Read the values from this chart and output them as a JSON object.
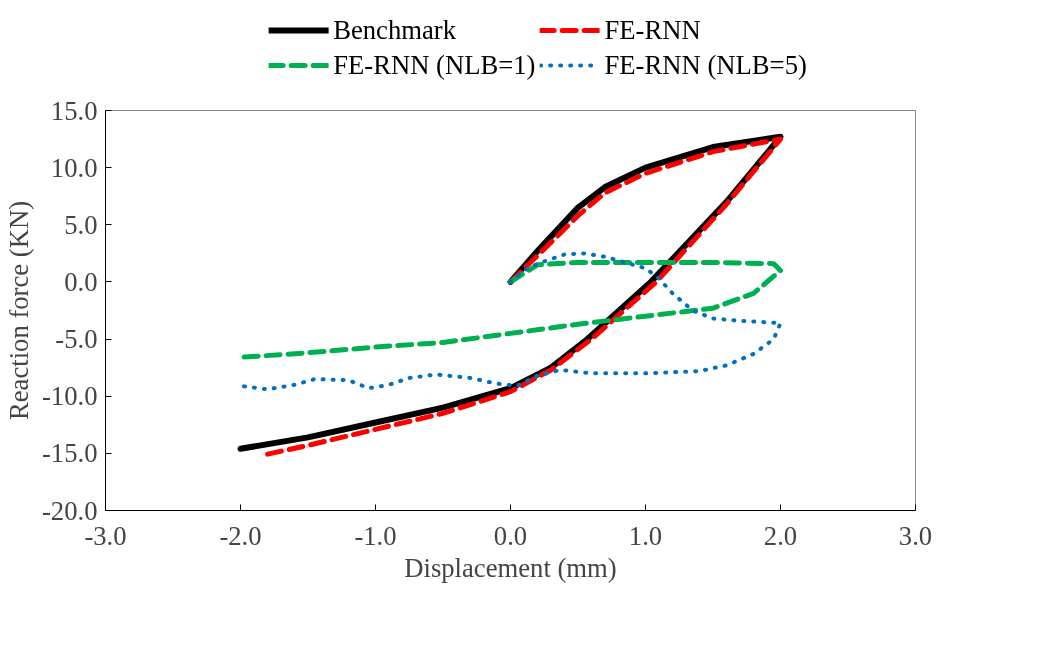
{
  "chart_data": {
    "type": "line",
    "xlabel": "Displacement (mm)",
    "ylabel": "Reaction force (KN)",
    "xlim": [
      -3.0,
      3.0
    ],
    "ylim": [
      -20.0,
      15.0
    ],
    "xticks": [
      {
        "value": -3,
        "label": "-3.0"
      },
      {
        "value": -2,
        "label": "-2.0"
      },
      {
        "value": -1,
        "label": "-1.0"
      },
      {
        "value": 0,
        "label": "0.0"
      },
      {
        "value": 1,
        "label": "1.0"
      },
      {
        "value": 2,
        "label": "2.0"
      },
      {
        "value": 3,
        "label": "3.0"
      }
    ],
    "yticks": [
      {
        "value": -20,
        "label": "-20.0"
      },
      {
        "value": -15,
        "label": "-15.0"
      },
      {
        "value": -10,
        "label": "-10.0"
      },
      {
        "value": -5,
        "label": "-5.0"
      },
      {
        "value": 0,
        "label": "0.0"
      },
      {
        "value": 5,
        "label": "5.0"
      },
      {
        "value": 10,
        "label": "10.0"
      },
      {
        "value": 15,
        "label": "15.0"
      }
    ],
    "grid": false,
    "legend": "top",
    "marker": "none",
    "series": [
      {
        "name": "Benchmark",
        "color": "#000000",
        "line_style": "solid",
        "x": [
          0,
          0.2,
          0.5,
          0.7,
          1.0,
          1.5,
          2.0,
          1.6,
          1.04,
          0.57,
          0.3,
          0.0,
          -0.5,
          -1.0,
          -1.5,
          -2.0
        ],
        "values": [
          0,
          2.7,
          6.5,
          8.3,
          10.0,
          11.8,
          12.7,
          7.0,
          0,
          -5.0,
          -7.5,
          -9.3,
          -11.0,
          -12.3,
          -13.6,
          -14.6
        ]
      },
      {
        "name": "FE-RNN",
        "color": "#ff0000",
        "line_style": "dashed",
        "x": [
          0,
          0.2,
          0.5,
          0.7,
          1.0,
          1.5,
          2.0,
          1.6,
          1.08,
          0.6,
          0.3,
          0.0,
          -0.5,
          -1.0,
          -1.5,
          -1.85
        ],
        "values": [
          0,
          2.3,
          5.8,
          7.8,
          9.5,
          11.4,
          12.5,
          6.8,
          0,
          -5.0,
          -7.7,
          -9.6,
          -11.5,
          -12.9,
          -14.3,
          -15.2
        ]
      },
      {
        "name": "FE-RNN (NLB=1)",
        "color": "#00b050",
        "line_style": "dashed",
        "x": [
          0,
          0.2,
          0.5,
          1.0,
          1.5,
          1.95,
          2.0,
          1.8,
          1.5,
          1.0,
          0.5,
          0.0,
          -0.5,
          -1.0,
          -1.5,
          -2.0
        ],
        "values": [
          0,
          1.5,
          1.7,
          1.7,
          1.7,
          1.6,
          1.0,
          -1.0,
          -2.3,
          -3.0,
          -3.7,
          -4.5,
          -5.3,
          -5.7,
          -6.2,
          -6.6
        ]
      },
      {
        "name": "FE-RNN (NLB=5)",
        "color": "#0070c0",
        "line_style": "dotted",
        "x": [
          0,
          0.1,
          0.2,
          0.4,
          0.55,
          0.7,
          0.85,
          1.0,
          1.1,
          1.2,
          1.35,
          1.5,
          1.7,
          1.85,
          2.0,
          1.95,
          1.8,
          1.6,
          1.4,
          1.0,
          0.6,
          0.37,
          0.2,
          0.05,
          -0.1,
          -0.3,
          -0.55,
          -0.75,
          -0.9,
          -1.05,
          -1.2,
          -1.45,
          -1.6,
          -1.8,
          -2.0
        ],
        "values": [
          0,
          1.0,
          1.6,
          2.4,
          2.5,
          2.2,
          1.7,
          1.2,
          0.3,
          -1.0,
          -2.5,
          -3.2,
          -3.4,
          -3.5,
          -3.6,
          -5.0,
          -6.3,
          -7.3,
          -7.8,
          -8.0,
          -8.0,
          -7.7,
          -8.2,
          -9.1,
          -8.9,
          -8.4,
          -8.1,
          -8.4,
          -9.0,
          -9.3,
          -8.6,
          -8.5,
          -9.0,
          -9.4,
          -9.1
        ]
      }
    ]
  }
}
